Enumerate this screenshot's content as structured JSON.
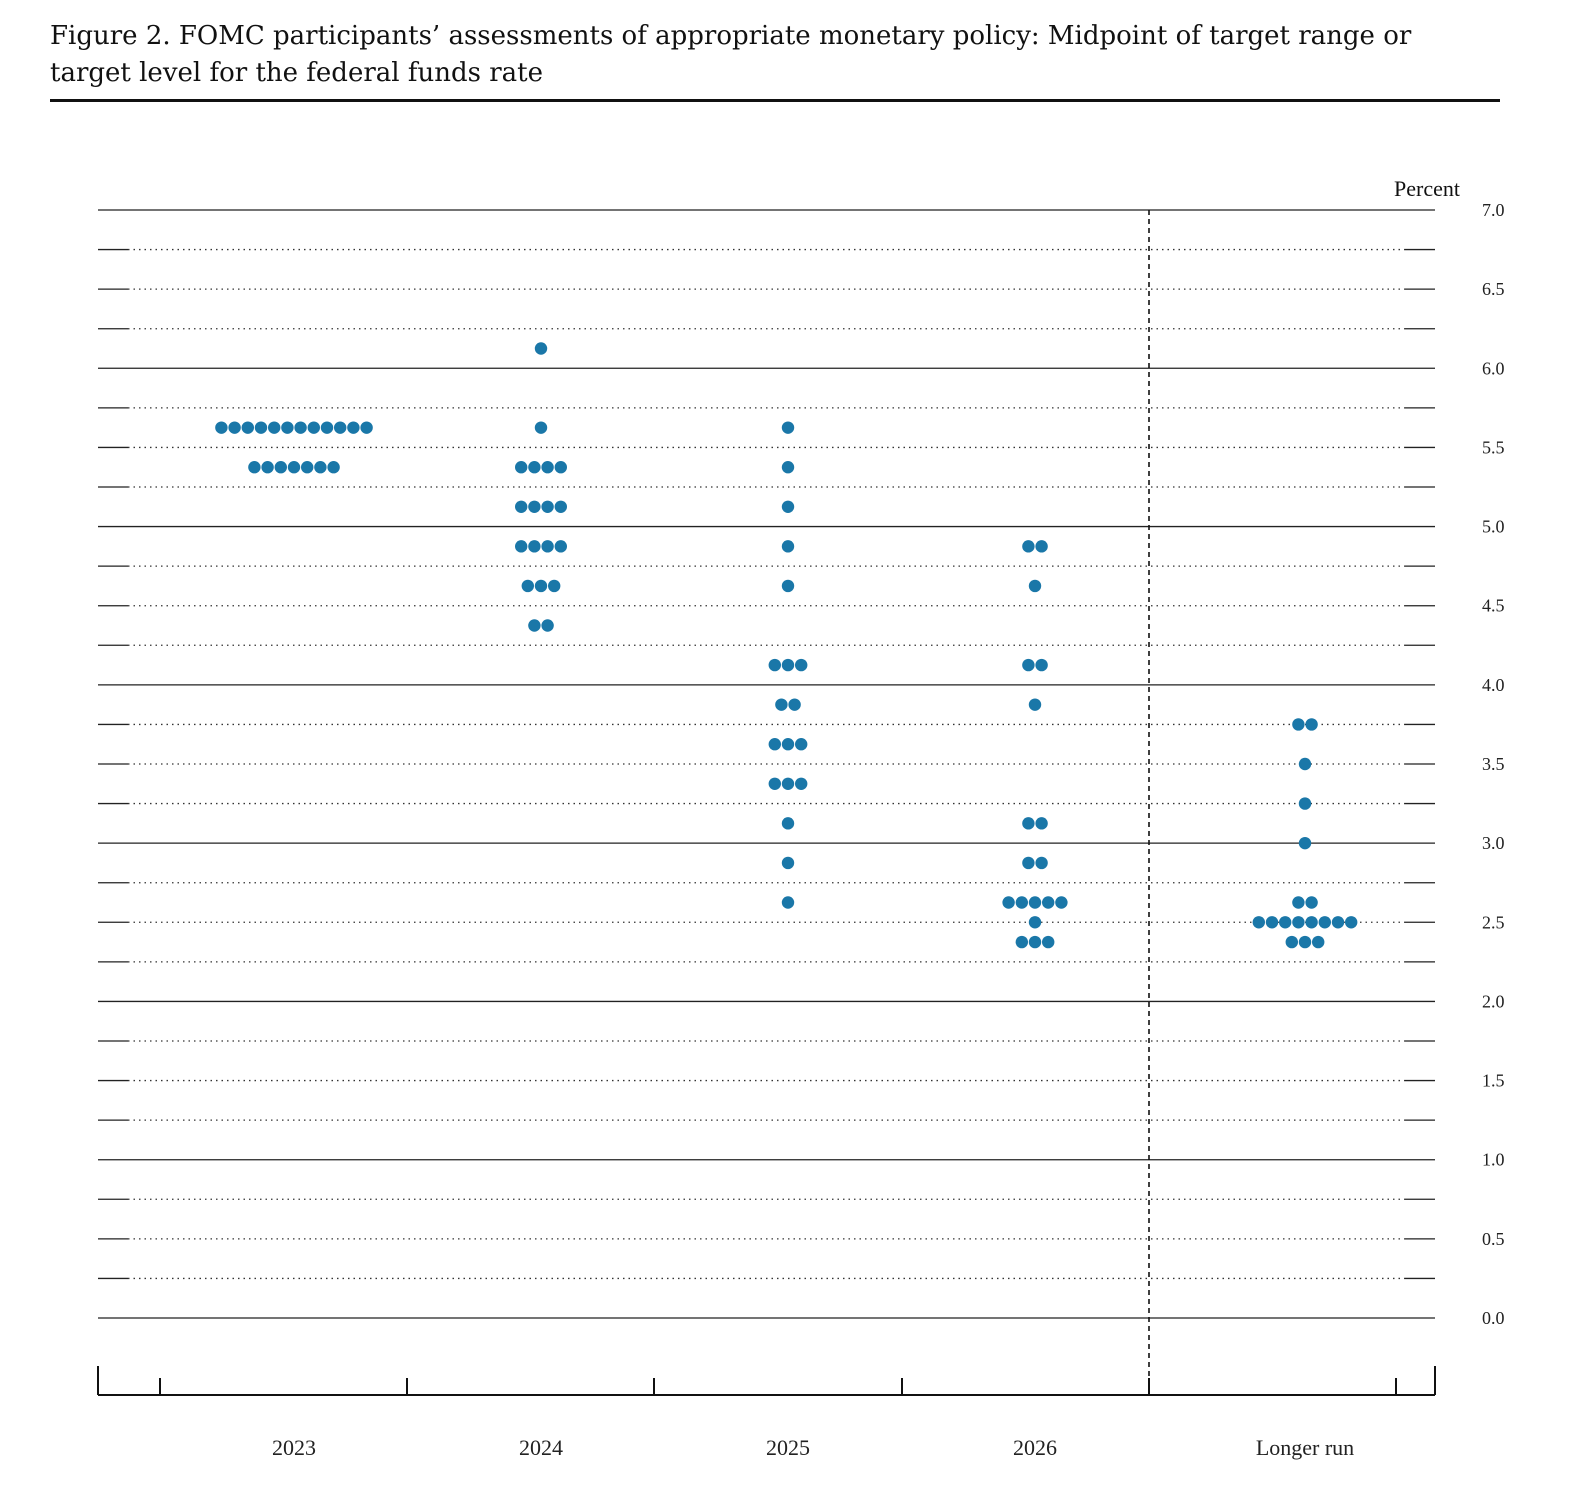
{
  "figure": {
    "title": "Figure 2.  FOMC participants’ assessments of appropriate monetary policy:  Midpoint of target range or target level for the federal funds rate"
  },
  "chart_data": {
    "type": "scatter",
    "title": "Figure 2.  FOMC participants’ assessments of appropriate monetary policy:  Midpoint of target range or target level for the federal funds rate",
    "ylabel": "Percent",
    "xlabel": "",
    "ylim": [
      0,
      7
    ],
    "yticks": [
      "0.0",
      "0.5",
      "1.0",
      "1.5",
      "2.0",
      "2.5",
      "3.0",
      "3.5",
      "4.0",
      "4.5",
      "5.0",
      "5.5",
      "6.0",
      "6.5",
      "7.0"
    ],
    "categories": [
      "2023",
      "2024",
      "2025",
      "2026",
      "Longer run"
    ],
    "dot_color": "#1a77a8",
    "grid": "dotted horizontal lines every 0.25, solid at each whole percent",
    "series": [
      {
        "category": "2023",
        "points": [
          {
            "y": 5.625,
            "count": 12
          },
          {
            "y": 5.375,
            "count": 7
          }
        ]
      },
      {
        "category": "2024",
        "points": [
          {
            "y": 6.125,
            "count": 1
          },
          {
            "y": 5.625,
            "count": 1
          },
          {
            "y": 5.375,
            "count": 4
          },
          {
            "y": 5.125,
            "count": 4
          },
          {
            "y": 4.875,
            "count": 4
          },
          {
            "y": 4.625,
            "count": 3
          },
          {
            "y": 4.375,
            "count": 2
          }
        ]
      },
      {
        "category": "2025",
        "points": [
          {
            "y": 5.625,
            "count": 1
          },
          {
            "y": 5.375,
            "count": 1
          },
          {
            "y": 5.125,
            "count": 1
          },
          {
            "y": 4.875,
            "count": 1
          },
          {
            "y": 4.625,
            "count": 1
          },
          {
            "y": 4.125,
            "count": 3
          },
          {
            "y": 3.875,
            "count": 2
          },
          {
            "y": 3.625,
            "count": 3
          },
          {
            "y": 3.375,
            "count": 3
          },
          {
            "y": 3.125,
            "count": 1
          },
          {
            "y": 2.875,
            "count": 1
          },
          {
            "y": 2.625,
            "count": 1
          }
        ]
      },
      {
        "category": "2026",
        "points": [
          {
            "y": 4.875,
            "count": 2
          },
          {
            "y": 4.625,
            "count": 1
          },
          {
            "y": 4.125,
            "count": 2
          },
          {
            "y": 3.875,
            "count": 1
          },
          {
            "y": 3.125,
            "count": 2
          },
          {
            "y": 2.875,
            "count": 2
          },
          {
            "y": 2.625,
            "count": 5
          },
          {
            "y": 2.5,
            "count": 1
          },
          {
            "y": 2.375,
            "count": 3
          }
        ]
      },
      {
        "category": "Longer run",
        "points": [
          {
            "y": 3.75,
            "count": 2
          },
          {
            "y": 3.5,
            "count": 1
          },
          {
            "y": 3.25,
            "count": 1
          },
          {
            "y": 3.0,
            "count": 1
          },
          {
            "y": 2.625,
            "count": 2
          },
          {
            "y": 2.5,
            "count": 8
          },
          {
            "y": 2.375,
            "count": 3
          }
        ]
      }
    ]
  }
}
